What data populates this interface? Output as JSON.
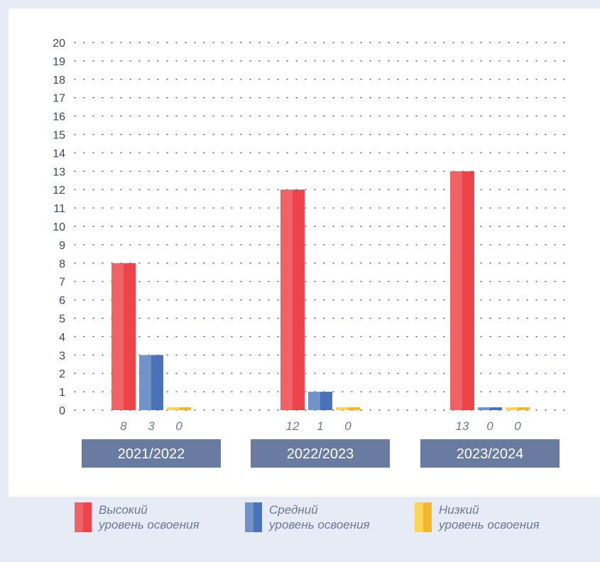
{
  "chart_data": {
    "type": "bar",
    "categories": [
      "2021/2022",
      "2022/2023",
      "2023/2024"
    ],
    "series": [
      {
        "name": "Высокий уровень освоения",
        "values": [
          8,
          12,
          13
        ],
        "color": "#ec444a",
        "color_light": "#f06266"
      },
      {
        "name": "Средний уровень освоения",
        "values": [
          3,
          1,
          0
        ],
        "color": "#4a72b8",
        "color_light": "#7193c8"
      },
      {
        "name": "Низкий уровень освоения",
        "values": [
          0,
          0,
          0
        ],
        "color": "#f4b72a",
        "color_light": "#fbd45a"
      }
    ],
    "value_labels": [
      [
        "8",
        "3",
        "0"
      ],
      [
        "12",
        "1",
        "0"
      ],
      [
        "13",
        "0",
        "0"
      ]
    ],
    "ylim": [
      0,
      20
    ],
    "yticks": [
      0,
      1,
      2,
      3,
      4,
      5,
      6,
      7,
      8,
      9,
      10,
      11,
      12,
      13,
      14,
      15,
      16,
      17,
      18,
      19,
      20
    ],
    "grid": "dotted",
    "legend_position": "bottom",
    "category_label_bg": "#6a7ba1"
  },
  "legend": [
    {
      "line1": "Высокий",
      "line2": "уровень освоения"
    },
    {
      "line1": "Средний",
      "line2": "уровень освоения"
    },
    {
      "line1": "Низкий",
      "line2": "уровень освоения"
    }
  ]
}
